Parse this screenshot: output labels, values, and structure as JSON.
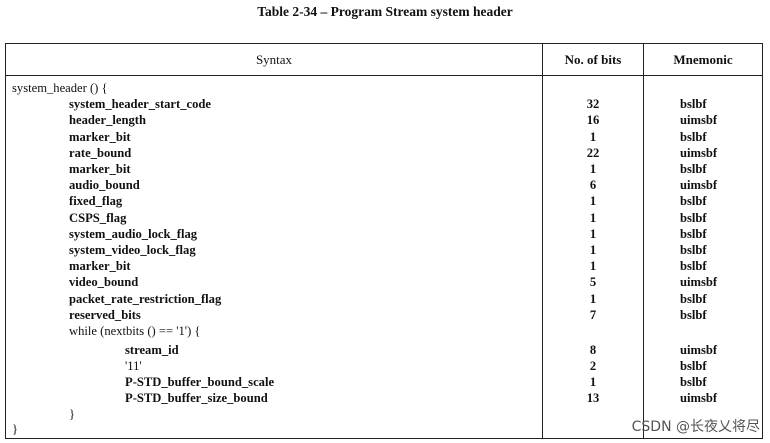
{
  "title": "Table 2-34 – Program Stream system header",
  "columns": {
    "syntax": "Syntax",
    "bits": "No. of bits",
    "mnemonic": "Mnemonic"
  },
  "rows": [
    {
      "syntax": "system_header () {",
      "bits": "",
      "mnemonic": ""
    },
    {
      "syntax": "system_header_start_code",
      "bits": "32",
      "mnemonic": "bslbf"
    },
    {
      "syntax": "header_length",
      "bits": "16",
      "mnemonic": "uimsbf"
    },
    {
      "syntax": "marker_bit",
      "bits": "1",
      "mnemonic": "bslbf"
    },
    {
      "syntax": "rate_bound",
      "bits": "22",
      "mnemonic": "uimsbf"
    },
    {
      "syntax": "marker_bit",
      "bits": "1",
      "mnemonic": "bslbf"
    },
    {
      "syntax": "audio_bound",
      "bits": "6",
      "mnemonic": "uimsbf"
    },
    {
      "syntax": "fixed_flag",
      "bits": "1",
      "mnemonic": "bslbf"
    },
    {
      "syntax": "CSPS_flag",
      "bits": "1",
      "mnemonic": "bslbf"
    },
    {
      "syntax": "system_audio_lock_flag",
      "bits": "1",
      "mnemonic": "bslbf"
    },
    {
      "syntax": "system_video_lock_flag",
      "bits": "1",
      "mnemonic": "bslbf"
    },
    {
      "syntax": "marker_bit",
      "bits": "1",
      "mnemonic": "bslbf"
    },
    {
      "syntax": "video_bound",
      "bits": "5",
      "mnemonic": "uimsbf"
    },
    {
      "syntax": "packet_rate_restriction_flag",
      "bits": "1",
      "mnemonic": "bslbf"
    },
    {
      "syntax": "reserved_bits",
      "bits": "7",
      "mnemonic": "bslbf"
    },
    {
      "syntax": "while (nextbits () == '1') {",
      "bits": "",
      "mnemonic": ""
    },
    {
      "syntax": "stream_id",
      "bits": "8",
      "mnemonic": "uimsbf"
    },
    {
      "syntax": "'11'",
      "bits": "2",
      "mnemonic": "bslbf"
    },
    {
      "syntax": "P-STD_buffer_bound_scale",
      "bits": "1",
      "mnemonic": "bslbf"
    },
    {
      "syntax": "P-STD_buffer_size_bound",
      "bits": "13",
      "mnemonic": "uimsbf"
    },
    {
      "syntax": "}",
      "bits": "",
      "mnemonic": ""
    },
    {
      "syntax": "}",
      "bits": "",
      "mnemonic": ""
    }
  ],
  "watermark": "CSDN @长夜乂将尽"
}
